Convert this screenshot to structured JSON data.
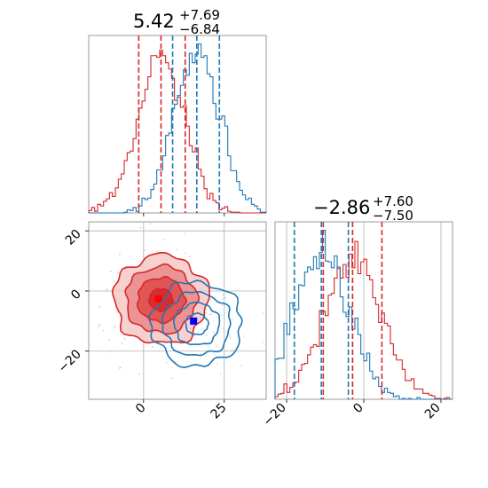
{
  "chart_data": [
    {
      "type": "histogram",
      "panel": "marginal-x",
      "title": {
        "value": "5.42",
        "plus": "+7.69",
        "minus": "−6.84"
      },
      "xlim": [
        -17,
        38
      ],
      "xticks": [
        0,
        25
      ],
      "series": [
        {
          "color": "#d62728",
          "center": 5.4,
          "sd": 7.3,
          "quantiles": [
            -1.5,
            5.4,
            12.9
          ]
        },
        {
          "color": "#1f77b4",
          "center": 16.5,
          "sd": 7.0,
          "quantiles": [
            9.0,
            16.5,
            23.5
          ]
        }
      ]
    },
    {
      "type": "histogram",
      "panel": "marginal-y",
      "title": {
        "value": "−2.86",
        "plus": "+7.60",
        "minus": "−7.50"
      },
      "xlim": [
        -23,
        23
      ],
      "xticks": [
        -20,
        0,
        20
      ],
      "series": [
        {
          "color": "#d62728",
          "center": -2.9,
          "sd": 7.4,
          "quantiles": [
            -10.5,
            -2.9,
            4.7
          ]
        },
        {
          "color": "#1f77b4",
          "center": -11.0,
          "sd": 7.0,
          "quantiles": [
            -18.0,
            -11.0,
            -4.0
          ]
        }
      ]
    },
    {
      "type": "contour",
      "panel": "joint",
      "xlim": [
        -17,
        38
      ],
      "ylim": [
        -36,
        23
      ],
      "xticks": [
        0,
        25
      ],
      "yticks": [
        -20,
        0,
        20
      ],
      "series": [
        {
          "color": "#d62728",
          "center": [
            5.4,
            -2.9
          ],
          "sd": [
            7.3,
            7.4
          ],
          "filled": true
        },
        {
          "color": "#1f77b4",
          "center": [
            16.5,
            -11.0
          ],
          "sd": [
            7.0,
            7.0
          ],
          "filled": false
        }
      ],
      "markers": [
        {
          "color": "#ff0000",
          "x": 4.6,
          "y": -2.6
        },
        {
          "color": "#0000ff",
          "x": 15.5,
          "y": -10.0
        }
      ]
    }
  ]
}
